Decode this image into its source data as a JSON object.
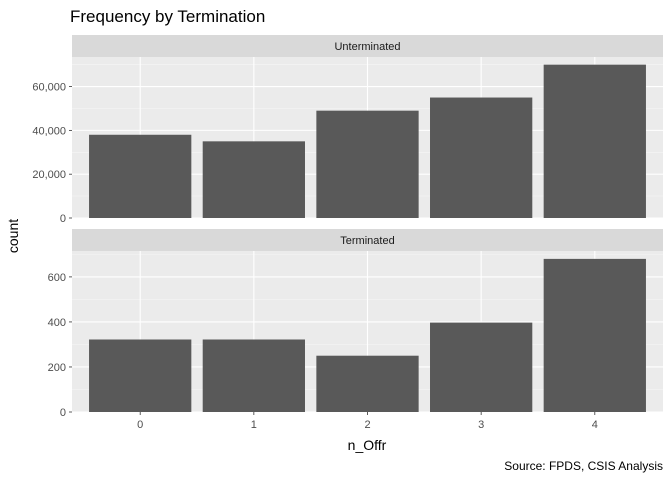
{
  "chart_data": {
    "type": "bar",
    "title": "Frequency by Termination",
    "xlabel": "n_Offr",
    "ylabel": "count",
    "caption": "Source: FPDS, CSIS Analysis",
    "categories": [
      "0",
      "1",
      "2",
      "3",
      "4"
    ],
    "grid": true,
    "bar_color": "#595959",
    "panel_background": "#ebebeb",
    "strip_background": "#d9d9d9",
    "facets": [
      {
        "label": "Unterminated",
        "values": [
          38000,
          35000,
          49000,
          55000,
          70000
        ],
        "ylim": [
          0,
          73500
        ],
        "ticks": [
          0,
          20000,
          40000,
          60000
        ],
        "tick_labels": [
          "0",
          "20,000",
          "40,000",
          "60,000"
        ]
      },
      {
        "label": "Terminated",
        "values": [
          322,
          322,
          250,
          397,
          680
        ],
        "ylim": [
          0,
          715
        ],
        "ticks": [
          0,
          200,
          400,
          600
        ],
        "tick_labels": [
          "0",
          "200",
          "400",
          "600"
        ]
      }
    ]
  }
}
